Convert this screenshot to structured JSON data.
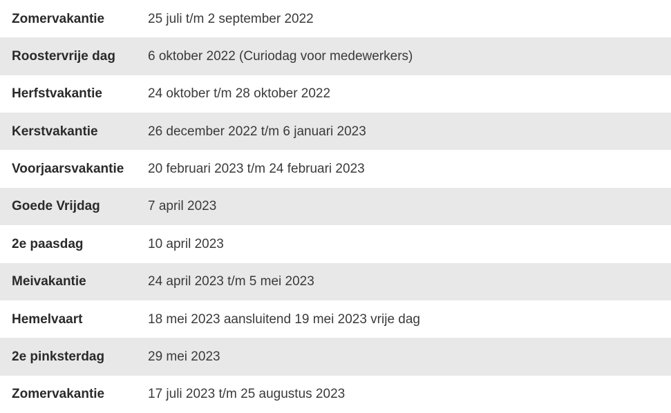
{
  "schedule": {
    "rows": [
      {
        "name": "Zomervakantie",
        "dates": "25 juli t/m 2 september 2022"
      },
      {
        "name": "Roostervrije dag",
        "dates": "6 oktober 2022 (Curiodag voor medewerkers)"
      },
      {
        "name": "Herfstvakantie",
        "dates": "24 oktober t/m 28 oktober 2022"
      },
      {
        "name": "Kerstvakantie",
        "dates": "26 december 2022 t/m 6 januari 2023"
      },
      {
        "name": "Voorjaarsvakantie",
        "dates": "20 februari 2023 t/m 24 februari 2023"
      },
      {
        "name": "Goede Vrijdag",
        "dates": "7 april 2023"
      },
      {
        "name": "2e paasdag",
        "dates": "10 april 2023"
      },
      {
        "name": "Meivakantie",
        "dates": "24 april 2023 t/m 5 mei 2023"
      },
      {
        "name": "Hemelvaart",
        "dates": "18 mei 2023 aansluitend 19 mei 2023 vrije dag"
      },
      {
        "name": "2e pinksterdag",
        "dates": "29 mei 2023"
      },
      {
        "name": "Zomervakantie",
        "dates": "17 juli 2023 t/m 25 augustus 2023"
      }
    ]
  }
}
